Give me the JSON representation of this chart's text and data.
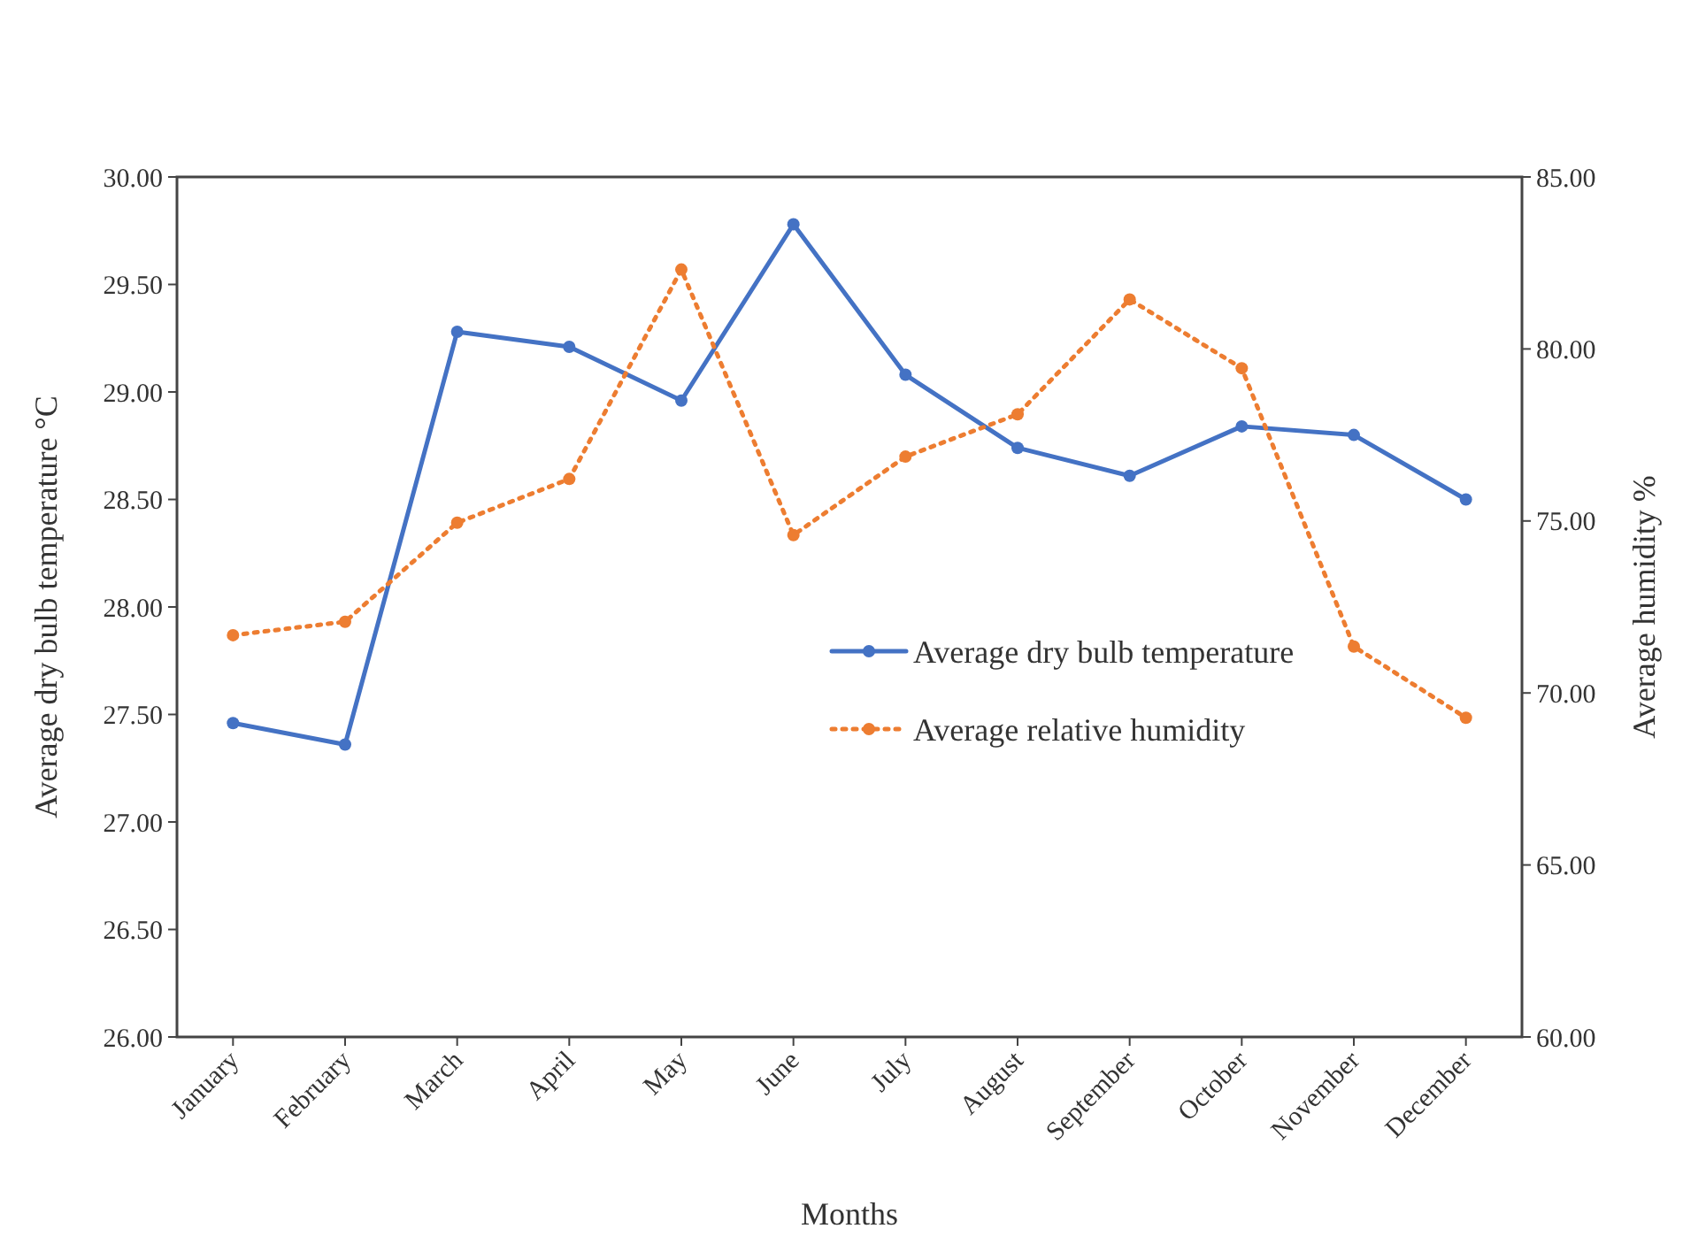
{
  "chart_data": {
    "type": "line",
    "xlabel": "Months",
    "ylabel": "Average dry bulb temperature °C",
    "y2label": "Average humidity %",
    "categories": [
      "January",
      "February",
      "March",
      "April",
      "May",
      "June",
      "July",
      "August",
      "September",
      "October",
      "November",
      "December"
    ],
    "ylim": [
      26,
      30
    ],
    "yticks": [
      {
        "value": 26,
        "label": "26.00"
      },
      {
        "value": 26.5,
        "label": "26.50"
      },
      {
        "value": 27,
        "label": "27.00"
      },
      {
        "value": 27.5,
        "label": "27.50"
      },
      {
        "value": 28,
        "label": "28.00"
      },
      {
        "value": 28.5,
        "label": "28.50"
      },
      {
        "value": 29,
        "label": "29.00"
      },
      {
        "value": 29.5,
        "label": "29.50"
      },
      {
        "value": 30,
        "label": "30.00"
      }
    ],
    "y2lim": [
      60,
      85
    ],
    "y2ticks": [
      {
        "value": 60,
        "label": "60.00"
      },
      {
        "value": 65,
        "label": "65.00"
      },
      {
        "value": 70,
        "label": "70.00"
      },
      {
        "value": 75,
        "label": "75.00"
      },
      {
        "value": 80,
        "label": "80.00"
      },
      {
        "value": 85,
        "label": "85.00"
      }
    ],
    "series": [
      {
        "name": "Average dry bulb temperature",
        "color": "#4472c4",
        "line_style": "solid",
        "values": [
          27.46,
          27.36,
          29.28,
          29.21,
          28.96,
          29.78,
          29.08,
          28.74,
          28.61,
          28.84,
          28.8,
          28.5
        ]
      },
      {
        "name": "Average relative humidity",
        "color": "#ed7d31",
        "line_style": "dotted",
        "axis": "y2",
        "values": [
          71.68,
          72.07,
          74.95,
          76.22,
          82.31,
          74.59,
          76.87,
          78.1,
          81.44,
          79.44,
          71.35,
          69.28
        ]
      }
    ],
    "marker": "circle",
    "grid": false,
    "legend": "bottom right"
  }
}
